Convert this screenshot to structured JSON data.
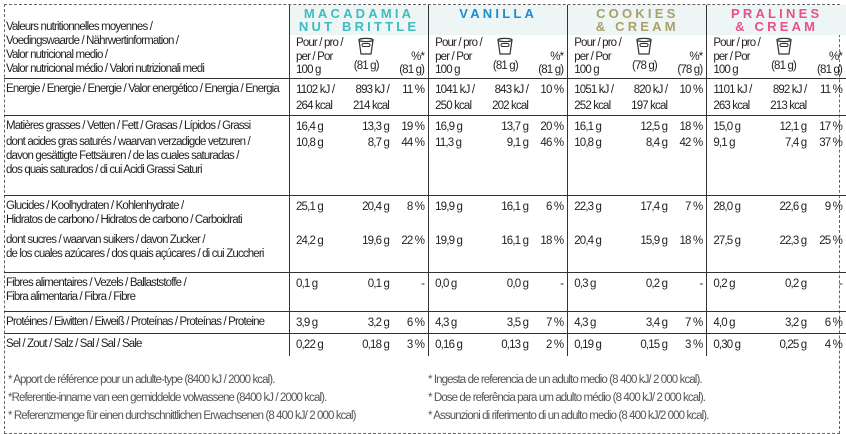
{
  "header_label": [
    "Valeurs nutritionnelles moyennes /",
    "Voedingswaarde / Nährwertinformation /",
    "Valor nutricional medio /",
    "Valor nutricional médio / Valori nutrizionali medi"
  ],
  "column_headers": {
    "per100": [
      "Pour / pro /",
      "per / Por",
      "100 g"
    ],
    "pct": "%*"
  },
  "products": [
    {
      "name": [
        "MACADAMIA",
        "NUT BRITTLE"
      ],
      "color": "#3dbdbf",
      "portion": "(81 g)",
      "pct_portion": "(81 g)",
      "values": [
        [
          "1102 kJ /\n264 kcal",
          "893 kJ /\n214 kcal",
          "11 %"
        ],
        [
          "16,4 g",
          "13,3 g",
          "19 %"
        ],
        [
          "10,8 g",
          "8,7 g",
          "44 %"
        ],
        [
          "25,1 g",
          "20,4 g",
          "8 %"
        ],
        [
          "24,2 g",
          "19,6 g",
          "22 %"
        ],
        [
          "0,1 g",
          "0,1 g",
          "-"
        ],
        [
          "3,9 g",
          "3,2 g",
          "6 %"
        ],
        [
          "0,22 g",
          "0,18 g",
          "3 %"
        ]
      ]
    },
    {
      "name": [
        "VANILLA",
        ""
      ],
      "color": "#1a8ecf",
      "portion": "(81 g)",
      "pct_portion": "(81 g)",
      "values": [
        [
          "1041 kJ /\n250 kcal",
          "843 kJ /\n202 kcal",
          "10 %"
        ],
        [
          "16,9 g",
          "13,7 g",
          "20 %"
        ],
        [
          "11,3 g",
          "9,1 g",
          "46 %"
        ],
        [
          "19,9 g",
          "16,1 g",
          "6 %"
        ],
        [
          "19,9 g",
          "16,1 g",
          "18 %"
        ],
        [
          "0,0 g",
          "0,0 g",
          "-"
        ],
        [
          "4,3 g",
          "3,5 g",
          "7 %"
        ],
        [
          "0,16 g",
          "0,13 g",
          "2 %"
        ]
      ]
    },
    {
      "name": [
        "COOKIES",
        "& CREAM"
      ],
      "color": "#a9a06a",
      "portion": "(78 g)",
      "pct_portion": "(78 g)",
      "values": [
        [
          "1051 kJ /\n252 kcal",
          "820 kJ /\n197 kcal",
          "10 %"
        ],
        [
          "16,1 g",
          "12,5 g",
          "18 %"
        ],
        [
          "10,8 g",
          "8,4 g",
          "42 %"
        ],
        [
          "22,3 g",
          "17,4 g",
          "7 %"
        ],
        [
          "20,4 g",
          "15,9 g",
          "18 %"
        ],
        [
          "0,3 g",
          "0,2 g",
          "-"
        ],
        [
          "4,3 g",
          "3,4 g",
          "7 %"
        ],
        [
          "0,19 g",
          "0,15 g",
          "3 %"
        ]
      ]
    },
    {
      "name": [
        "PRALINES",
        "& CREAM"
      ],
      "color": "#e9508b",
      "portion": "(81 g)",
      "pct_portion": "(81 g)",
      "values": [
        [
          "1101 kJ /\n263 kcal",
          "892 kJ /\n213 kcal",
          "11 %"
        ],
        [
          "15,0 g",
          "12,1 g",
          "17 %"
        ],
        [
          "9,1 g",
          "7,4 g",
          "37 %"
        ],
        [
          "28,0 g",
          "22,6 g",
          "9 %"
        ],
        [
          "27,5 g",
          "22,3 g",
          "25 %"
        ],
        [
          "0,2 g",
          "0,2 g",
          "-"
        ],
        [
          "4,0 g",
          "3,2 g",
          "6 %"
        ],
        [
          "0,30 g",
          "0,25 g",
          "4 %"
        ]
      ]
    }
  ],
  "rows": [
    "Energie / Energie / Energie / Valor energético / Energia / Energia",
    "Matières grasses / Vetten / Fett / Grasas / Lípidos / Grassi",
    "dont acides gras saturés / waarvan verzadigde vetzuren /\ndavon gesättigte Fettsäuren / de las cuales saturadas /\ndos quais saturados / di cui Acidi Grassi Saturi",
    "Glucides / Koolhydraten / Kohlenhydrate /\nHidratos de carbono / Hidratos de carbono / Carboidrati",
    "dont sucres / waarvan suikers / davon Zucker /\nde los cuales azúcares / dos quais açúcares / di cui Zuccheri",
    "Fibres alimentaires / Vezels / Ballaststoffe /\nFibra alimentaria / Fibra / Fibre",
    "Protéines / Eiwitten / Eiweiß / Proteínas / Proteínas / Proteine",
    "Sel / Zout / Salz / Sal / Sal / Sale"
  ],
  "footnotes_left": [
    "* Apport de référence pour un adulte-type (8400 kJ / 2000 kcal).",
    "*Referentie-inname van een gemiddelde volwassene (8400 kJ / 2000 kcal).",
    "* Referenzmenge für einen durchschnittlichen Erwachsenen (8 400 kJ/ 2 000 kcal)"
  ],
  "footnotes_right": [
    "* Ingesta de referencia de un adulto medio (8 400 kJ/ 2 000 kcal).",
    "* Dose de referência para um adulto médio (8 400 kJ/ 2 000 kcal).",
    "* Assunzioni di riferimento di un adulto medio (8 400 kJ/2 000 kcal)."
  ]
}
